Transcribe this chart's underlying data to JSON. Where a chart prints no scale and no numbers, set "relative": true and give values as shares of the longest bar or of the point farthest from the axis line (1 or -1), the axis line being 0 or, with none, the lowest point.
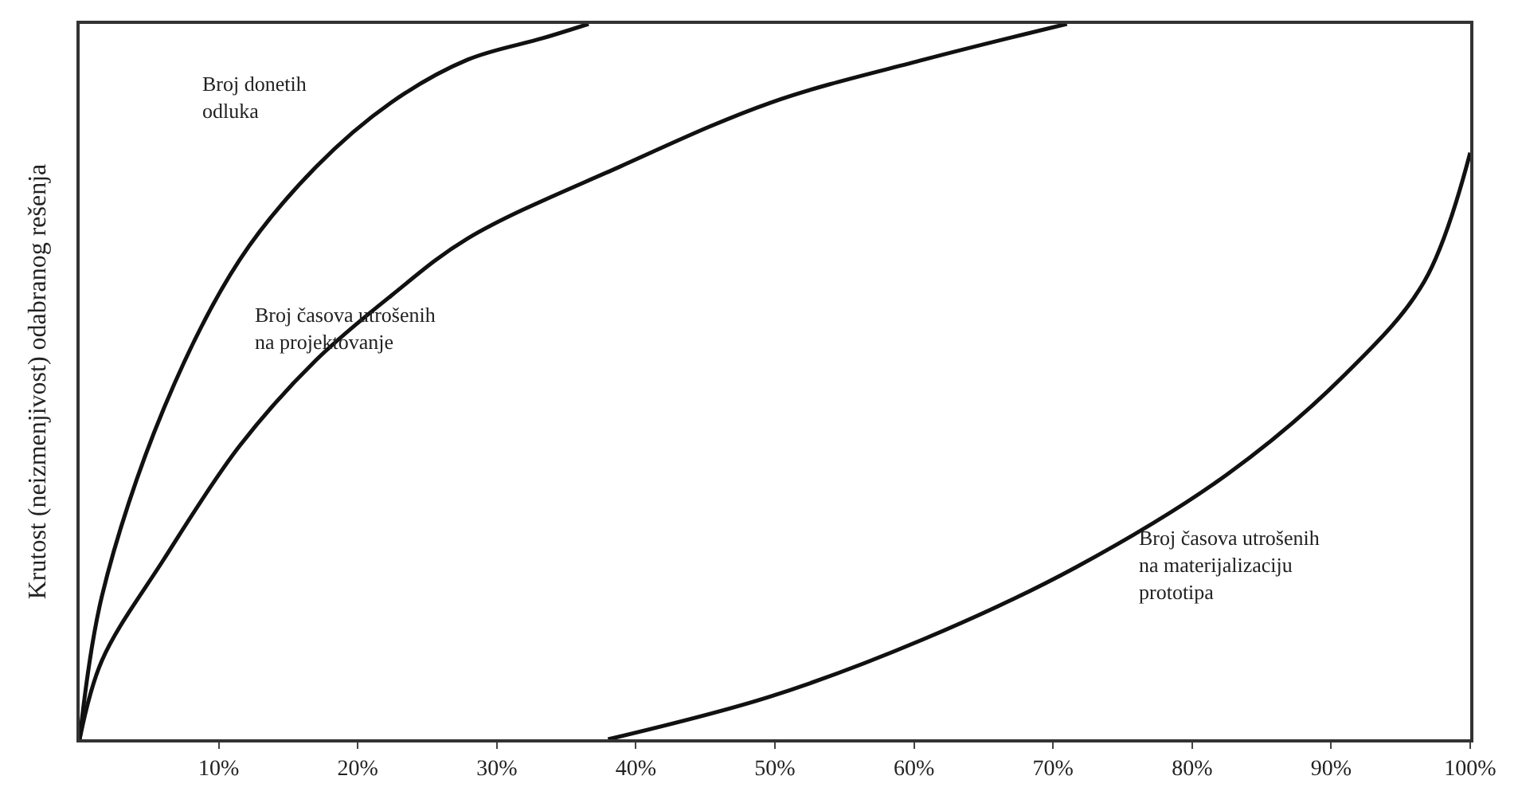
{
  "chart_data": {
    "type": "line",
    "relative": true,
    "ylabel": "Krutost (neizmenjivost) odabranog rešenja",
    "xlim": [
      0,
      100
    ],
    "xticks": [
      {
        "value": 10,
        "label": "10%"
      },
      {
        "value": 20,
        "label": "20%"
      },
      {
        "value": 30,
        "label": "30%"
      },
      {
        "value": 40,
        "label": "40%"
      },
      {
        "value": 50,
        "label": "50%"
      },
      {
        "value": 60,
        "label": "60%"
      },
      {
        "value": 70,
        "label": "70%"
      },
      {
        "value": 80,
        "label": "80%"
      },
      {
        "value": 90,
        "label": "90%"
      },
      {
        "value": 100,
        "label": "100%"
      }
    ],
    "series": [
      {
        "name": "Broj donetih\nodluka",
        "color": "#111111",
        "x": [
          0,
          1.6,
          6,
          11.5,
          17,
          22.4,
          27.9,
          33.3,
          36.6
        ],
        "values": [
          0,
          0.2,
          0.46,
          0.67,
          0.8,
          0.89,
          0.95,
          0.98,
          1
        ]
      },
      {
        "name": "Broj časova utrošenih\nna projektovanje",
        "color": "#111111",
        "x": [
          0,
          1.6,
          6,
          11.5,
          17,
          22.4,
          27.9,
          38.8,
          49.7,
          60.7,
          71
        ],
        "values": [
          0,
          0.11,
          0.25,
          0.41,
          0.53,
          0.62,
          0.7,
          0.8,
          0.89,
          0.95,
          1
        ]
      },
      {
        "name": "Broj časova utrošenih\nna materijalizaciju\nprototipa",
        "color": "#111111",
        "x": [
          38,
          49.7,
          60.7,
          71.6,
          82.5,
          91,
          96.7,
          100
        ],
        "values": [
          0,
          0.06,
          0.14,
          0.24,
          0.37,
          0.51,
          0.64,
          0.82
        ]
      }
    ],
    "legend": false,
    "marker": "none",
    "line_style": "solid"
  }
}
